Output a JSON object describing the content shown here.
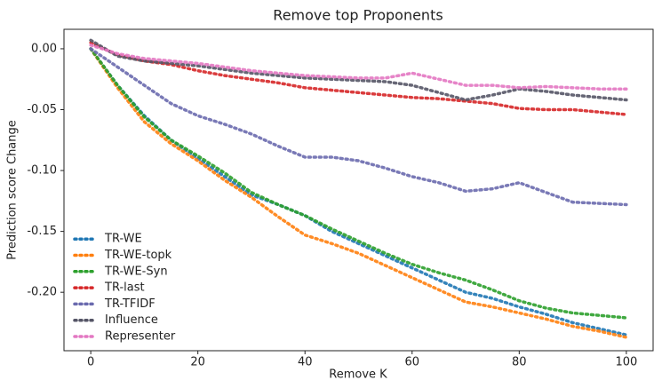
{
  "chart_data": {
    "type": "line",
    "title": "Remove top Proponents",
    "xlabel": "Remove K",
    "ylabel": "Prediction score Change",
    "x": [
      0,
      5,
      10,
      15,
      20,
      25,
      30,
      35,
      40,
      45,
      50,
      55,
      60,
      65,
      70,
      75,
      80,
      85,
      90,
      95,
      100
    ],
    "series": [
      {
        "name": "TR-WE",
        "color": "#1f77b4",
        "values": [
          0,
          -0.03,
          -0.055,
          -0.075,
          -0.09,
          -0.105,
          -0.12,
          -0.128,
          -0.137,
          -0.15,
          -0.16,
          -0.17,
          -0.18,
          -0.19,
          -0.2,
          -0.205,
          -0.212,
          -0.218,
          -0.225,
          -0.23,
          -0.235
        ]
      },
      {
        "name": "TR-WE-topk",
        "color": "#ff7f0e",
        "values": [
          0,
          -0.032,
          -0.06,
          -0.078,
          -0.092,
          -0.108,
          -0.122,
          -0.138,
          -0.153,
          -0.16,
          -0.168,
          -0.178,
          -0.188,
          -0.198,
          -0.208,
          -0.212,
          -0.217,
          -0.222,
          -0.228,
          -0.232,
          -0.237
        ]
      },
      {
        "name": "TR-WE-Syn",
        "color": "#2ca02c",
        "values": [
          0,
          -0.03,
          -0.056,
          -0.075,
          -0.088,
          -0.102,
          -0.118,
          -0.128,
          -0.137,
          -0.148,
          -0.158,
          -0.168,
          -0.177,
          -0.184,
          -0.19,
          -0.198,
          -0.207,
          -0.213,
          -0.217,
          -0.219,
          -0.221
        ]
      },
      {
        "name": "TR-last",
        "color": "#d62728",
        "values": [
          0.005,
          -0.005,
          -0.01,
          -0.013,
          -0.018,
          -0.022,
          -0.025,
          -0.028,
          -0.032,
          -0.034,
          -0.036,
          -0.038,
          -0.04,
          -0.041,
          -0.043,
          -0.045,
          -0.049,
          -0.05,
          -0.05,
          -0.052,
          -0.054
        ]
      },
      {
        "name": "TR-TFIDF",
        "color": "#6a6aae",
        "values": [
          0,
          -0.015,
          -0.03,
          -0.045,
          -0.055,
          -0.062,
          -0.07,
          -0.08,
          -0.089,
          -0.089,
          -0.092,
          -0.098,
          -0.105,
          -0.11,
          -0.117,
          -0.115,
          -0.11,
          -0.118,
          -0.126,
          -0.127,
          -0.128
        ]
      },
      {
        "name": "Influence",
        "color": "#555566",
        "values": [
          0.007,
          -0.006,
          -0.01,
          -0.012,
          -0.014,
          -0.017,
          -0.02,
          -0.022,
          -0.024,
          -0.025,
          -0.026,
          -0.027,
          -0.03,
          -0.036,
          -0.042,
          -0.038,
          -0.033,
          -0.035,
          -0.038,
          -0.04,
          -0.042
        ]
      },
      {
        "name": "Representer",
        "color": "#e377c2",
        "values": [
          0.003,
          -0.004,
          -0.008,
          -0.01,
          -0.012,
          -0.015,
          -0.018,
          -0.02,
          -0.022,
          -0.023,
          -0.024,
          -0.024,
          -0.02,
          -0.025,
          -0.03,
          -0.03,
          -0.032,
          -0.031,
          -0.032,
          -0.033,
          -0.033
        ]
      }
    ],
    "xlim": [
      -5,
      105
    ],
    "xticks": [
      0,
      20,
      40,
      60,
      80,
      100
    ],
    "ylim": [
      -0.248,
      0.016
    ],
    "yticks": [
      {
        "value": -0.2,
        "label": "-0.20"
      },
      {
        "value": -0.15,
        "label": "-0.15"
      },
      {
        "value": -0.1,
        "label": "-0.10"
      },
      {
        "value": -0.05,
        "label": "-0.05"
      },
      {
        "value": 0,
        "label": "0.00"
      }
    ],
    "grid": false,
    "legend": "lower left"
  }
}
